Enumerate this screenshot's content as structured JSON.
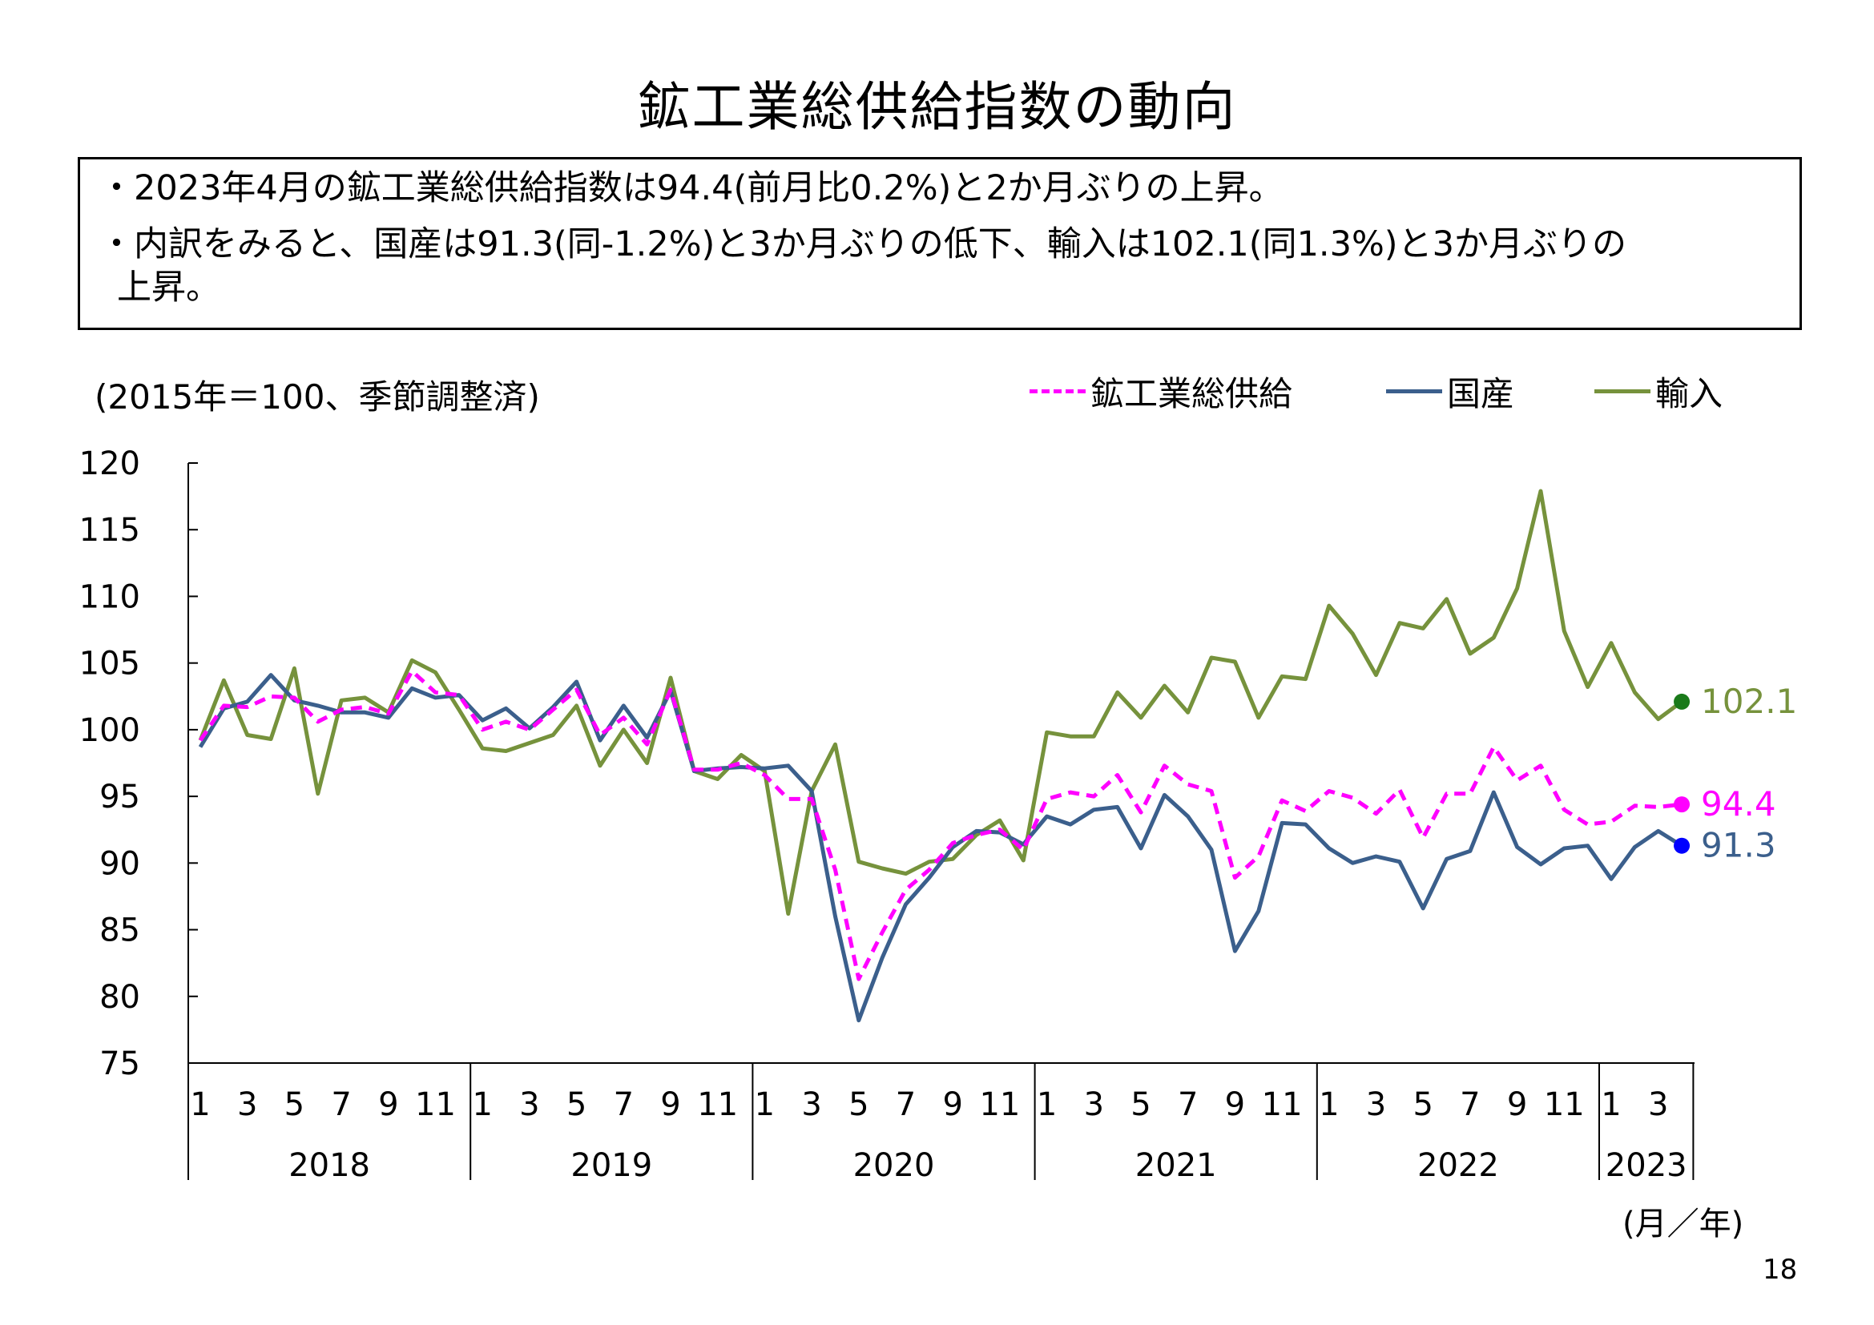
{
  "title": "鉱工業総供給指数の動向",
  "summary": {
    "line1": "・2023年4月の鉱工業総供給指数は94.4(前月比0.2%)と2か月ぶりの上昇。",
    "line2": "・内訳をみると、国産は91.3(同-1.2%)と3か月ぶりの低下、輸入は102.1(同1.3%)と3か月ぶりの",
    "line3": "上昇。"
  },
  "unit_label": "(2015年＝100、季節調整済)",
  "axis_unit": "(月／年)",
  "page_number": "18",
  "colors": {
    "total": "#ff00ff",
    "domestic": "#3b5f8c",
    "import": "#76923c",
    "domestic_marker": "#0000ff",
    "import_marker": "#1a7a1a"
  },
  "chart_data": {
    "type": "line",
    "title": "鉱工業総供給指数の動向",
    "ylabel": "(2015年＝100、季節調整済)",
    "xlabel": "(月／年)",
    "ylim": [
      75,
      120
    ],
    "yticks": [
      75,
      80,
      85,
      90,
      95,
      100,
      105,
      110,
      115,
      120
    ],
    "month_tick_labels": [
      "1",
      "3",
      "5",
      "7",
      "9",
      "11"
    ],
    "years": [
      {
        "label": "2018",
        "months": 12
      },
      {
        "label": "2019",
        "months": 12
      },
      {
        "label": "2020",
        "months": 12
      },
      {
        "label": "2021",
        "months": 12
      },
      {
        "label": "2022",
        "months": 12
      },
      {
        "label": "2023",
        "months": 4
      }
    ],
    "legend_position": "top-right",
    "series": [
      {
        "key": "total",
        "name": "鉱工業総供給",
        "style": "dashed",
        "values": [
          99.2,
          101.8,
          101.7,
          102.5,
          102.4,
          100.6,
          101.5,
          101.7,
          101.2,
          104.4,
          102.8,
          102.6,
          100.0,
          100.6,
          100.0,
          101.5,
          103.0,
          99.6,
          100.9,
          98.9,
          103.0,
          97.0,
          97.0,
          97.5,
          96.6,
          94.8,
          94.8,
          89.5,
          81.3,
          84.8,
          88.0,
          89.5,
          91.5,
          92.1,
          92.5,
          91.0,
          94.8,
          95.3,
          95.0,
          96.6,
          93.8,
          97.3,
          95.9,
          95.4,
          88.9,
          90.5,
          94.7,
          93.9,
          95.4,
          94.9,
          93.7,
          95.5,
          91.9,
          95.2,
          95.2,
          98.7,
          96.2,
          97.3,
          94.0,
          92.9,
          93.1,
          94.3,
          94.2,
          94.4
        ],
        "end_label": "94.4"
      },
      {
        "key": "domestic",
        "name": "国産",
        "style": "solid",
        "values": [
          98.7,
          101.6,
          102.1,
          104.1,
          102.2,
          101.8,
          101.3,
          101.3,
          100.9,
          103.1,
          102.4,
          102.6,
          100.7,
          101.6,
          100.1,
          101.7,
          103.6,
          99.2,
          101.8,
          99.4,
          102.9,
          96.9,
          97.1,
          97.2,
          97.1,
          97.3,
          95.4,
          86.0,
          78.2,
          82.9,
          86.9,
          88.9,
          91.2,
          92.4,
          92.3,
          91.4,
          93.5,
          92.9,
          94.0,
          94.2,
          91.1,
          95.1,
          93.5,
          91.0,
          83.4,
          86.4,
          93.0,
          92.9,
          91.1,
          90.0,
          90.5,
          90.1,
          86.6,
          90.3,
          90.9,
          95.3,
          91.2,
          89.9,
          91.1,
          91.3,
          88.8,
          91.2,
          92.4,
          91.3
        ],
        "end_label": "91.3"
      },
      {
        "key": "import",
        "name": "輸入",
        "style": "solid",
        "values": [
          99.2,
          103.7,
          99.6,
          99.3,
          104.6,
          95.2,
          102.2,
          102.4,
          101.3,
          105.2,
          104.3,
          101.5,
          98.6,
          98.4,
          99.0,
          99.6,
          101.8,
          97.3,
          100.0,
          97.5,
          103.9,
          96.9,
          96.3,
          98.1,
          96.9,
          86.2,
          95.4,
          98.9,
          90.1,
          89.6,
          89.2,
          90.1,
          90.3,
          92.1,
          93.2,
          90.2,
          99.8,
          99.5,
          99.5,
          102.8,
          100.9,
          103.3,
          101.3,
          105.4,
          105.1,
          100.9,
          104.0,
          103.8,
          109.3,
          107.2,
          104.1,
          108.0,
          107.6,
          109.8,
          105.7,
          106.9,
          110.6,
          117.9,
          107.4,
          103.2,
          106.5,
          102.8,
          100.8,
          102.1
        ],
        "end_label": "102.1"
      }
    ]
  }
}
